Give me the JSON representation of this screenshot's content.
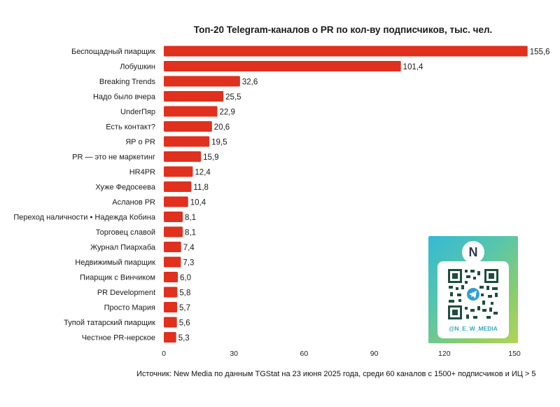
{
  "chart_data": {
    "type": "bar",
    "orientation": "horizontal",
    "title": "Топ-20 Telegram-каналов о PR по кол-ву подписчиков, тыс. чел.",
    "categories": [
      "Беспощадный пиарщик",
      "Лобушкин",
      "Breaking Trends",
      "Надо было вчера",
      "UnderПяр",
      "Есть контакт?",
      "ЯР о PR",
      "PR — это не маркетинг",
      "HR4PR",
      "Хуже Федосеева",
      "Асланов PR",
      "Переход наличности • Надежда Кобина",
      "Торговец славой",
      "Журнал Пиархаба",
      "Недвижимый пиарщик",
      "Пиарщик с Винчиком",
      "PR Development",
      "Просто Мария",
      "Тупой татарский пиарщик",
      "Честное PR-нерское"
    ],
    "values": [
      155.6,
      101.4,
      32.6,
      25.5,
      22.9,
      20.6,
      19.5,
      15.9,
      12.4,
      11.8,
      10.4,
      8.1,
      8.1,
      7.4,
      7.3,
      6.0,
      5.8,
      5.7,
      5.6,
      5.3
    ],
    "value_labels": [
      "155,6",
      "101,4",
      "32,6",
      "25,5",
      "22,9",
      "20,6",
      "19,5",
      "15,9",
      "12,4",
      "11,8",
      "10,4",
      "8,1",
      "8,1",
      "7,4",
      "7,3",
      "6,0",
      "5,8",
      "5,7",
      "5,6",
      "5,3"
    ],
    "xticks": [
      0,
      30,
      60,
      90,
      120,
      150
    ],
    "xlim": [
      0,
      150
    ],
    "grid": false,
    "bar_color": "#e0301e"
  },
  "source": "Источник: New Media по данным TGStat на 23 июня 2025 года, среди 60 каналов с 1500+ подписчиков и ИЦ > 5",
  "qr_card": {
    "logo_letter": "N",
    "handle": "@N_E_W_MEDIA"
  }
}
